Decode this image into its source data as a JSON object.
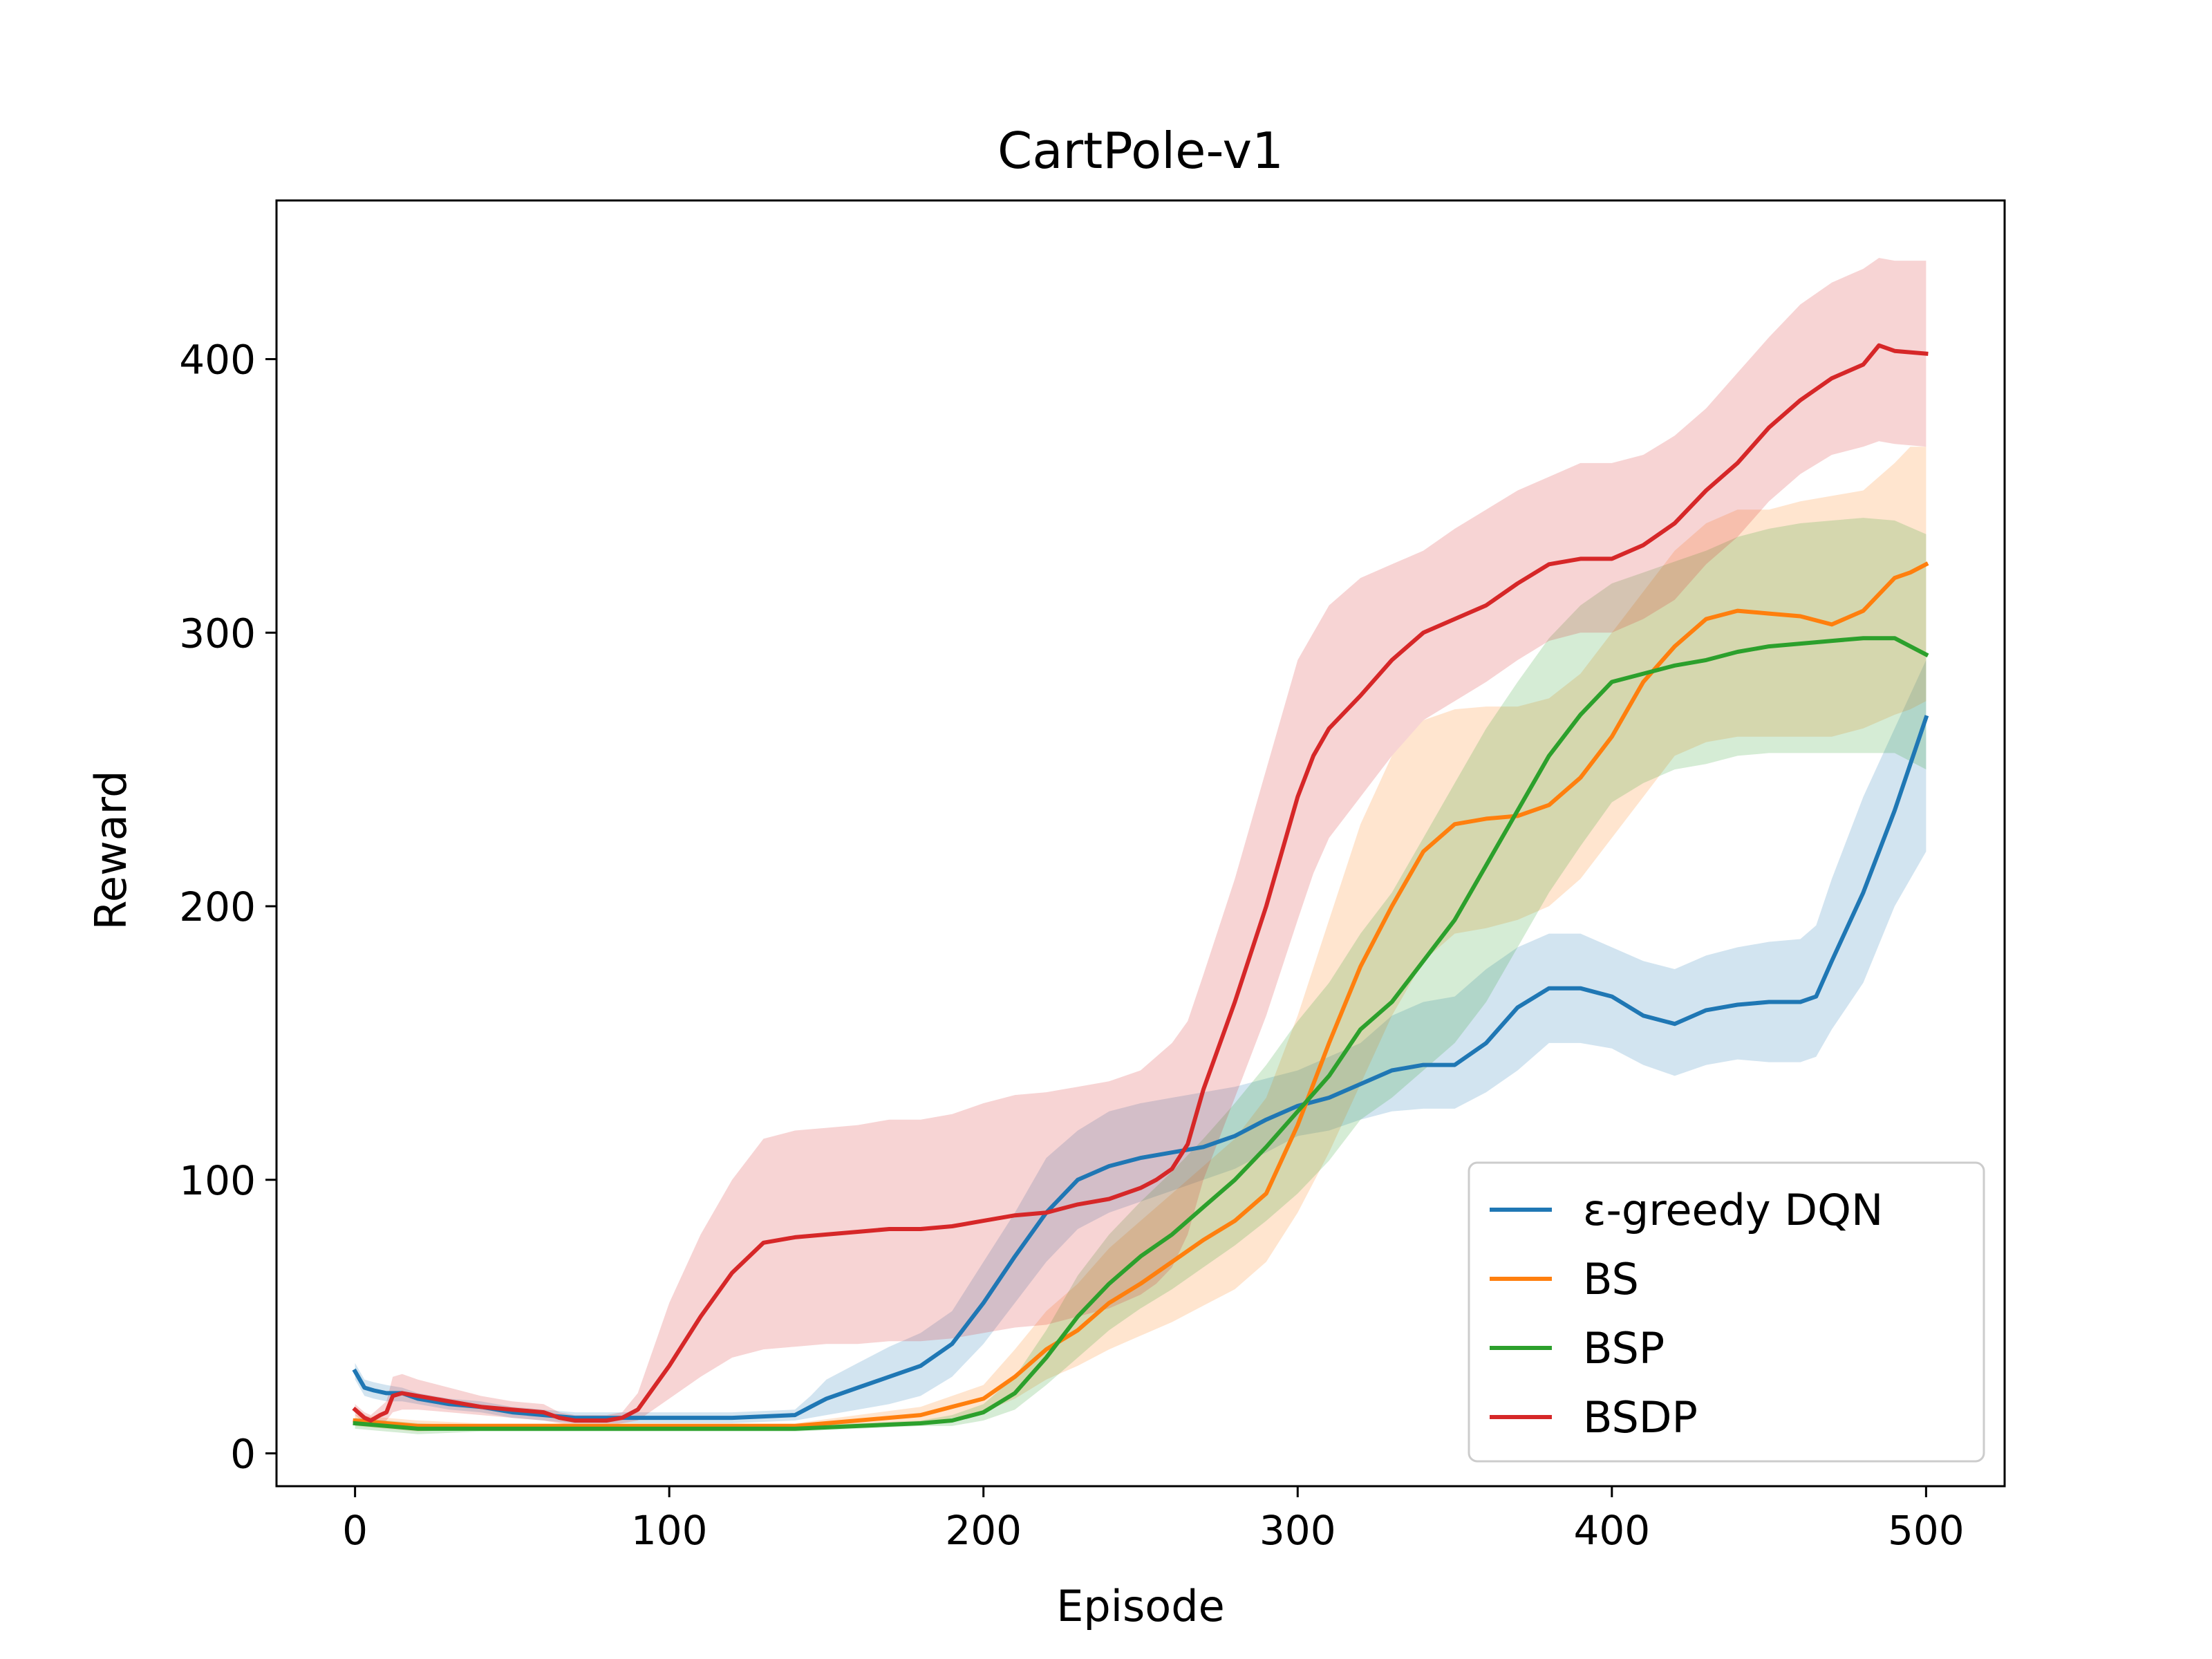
{
  "chart_data": {
    "type": "line",
    "title": "CartPole-v1",
    "xlabel": "Episode",
    "ylabel": "Reward",
    "xlim": [
      -25,
      525
    ],
    "ylim": [
      -12,
      458
    ],
    "xticks": [
      0,
      100,
      200,
      300,
      400,
      500
    ],
    "yticks": [
      0,
      100,
      200,
      300,
      400
    ],
    "grid": false,
    "legend_position": "lower-right",
    "series": [
      {
        "name": "ε-greedy DQN",
        "color": "#1f77b4",
        "x": [
          0,
          3,
          6,
          10,
          15,
          20,
          30,
          40,
          50,
          60,
          70,
          80,
          90,
          100,
          120,
          140,
          145,
          150,
          160,
          170,
          180,
          190,
          200,
          210,
          220,
          230,
          240,
          250,
          260,
          270,
          280,
          290,
          300,
          310,
          320,
          330,
          340,
          350,
          360,
          370,
          380,
          390,
          400,
          410,
          420,
          430,
          440,
          450,
          460,
          465,
          470,
          480,
          490,
          500
        ],
        "y": [
          30,
          24,
          23,
          22,
          22,
          20,
          18,
          17,
          15,
          14,
          13,
          13,
          13,
          13,
          13,
          14,
          17,
          20,
          24,
          28,
          32,
          40,
          55,
          72,
          88,
          100,
          105,
          108,
          110,
          112,
          116,
          122,
          127,
          130,
          135,
          140,
          142,
          142,
          150,
          163,
          170,
          170,
          167,
          160,
          157,
          162,
          164,
          165,
          165,
          167,
          180,
          205,
          235,
          269
        ],
        "upper": [
          33,
          27,
          26,
          25,
          24,
          22,
          20,
          19,
          17,
          16,
          15,
          15,
          15,
          15,
          15,
          16,
          21,
          27,
          33,
          39,
          44,
          52,
          70,
          88,
          108,
          118,
          125,
          128,
          130,
          132,
          134,
          137,
          140,
          145,
          150,
          160,
          165,
          167,
          177,
          185,
          190,
          190,
          185,
          180,
          177,
          182,
          185,
          187,
          188,
          193,
          210,
          240,
          265,
          290
        ],
        "lower": [
          27,
          21,
          20,
          19,
          19,
          18,
          16,
          15,
          13,
          12,
          11,
          11,
          11,
          11,
          11,
          12,
          13,
          14,
          16,
          18,
          21,
          28,
          40,
          55,
          70,
          82,
          88,
          92,
          96,
          100,
          104,
          110,
          116,
          118,
          122,
          125,
          126,
          126,
          132,
          140,
          150,
          150,
          148,
          142,
          138,
          142,
          144,
          143,
          143,
          145,
          155,
          172,
          200,
          220
        ]
      },
      {
        "name": "BS",
        "color": "#ff7f0e",
        "x": [
          0,
          10,
          20,
          40,
          60,
          80,
          100,
          140,
          160,
          180,
          190,
          200,
          210,
          220,
          230,
          240,
          250,
          260,
          270,
          280,
          290,
          300,
          310,
          320,
          330,
          340,
          350,
          360,
          370,
          380,
          390,
          400,
          410,
          420,
          430,
          440,
          450,
          460,
          470,
          480,
          490,
          495,
          500
        ],
        "y": [
          12,
          11,
          10,
          10,
          10,
          10,
          10,
          10,
          12,
          14,
          17,
          20,
          28,
          38,
          45,
          55,
          62,
          70,
          78,
          85,
          95,
          120,
          150,
          178,
          200,
          220,
          230,
          232,
          233,
          237,
          247,
          262,
          282,
          295,
          305,
          308,
          307,
          306,
          303,
          308,
          320,
          322,
          325
        ],
        "upper": [
          14,
          13,
          12,
          11,
          11,
          11,
          11,
          11,
          14,
          17,
          21,
          25,
          38,
          52,
          62,
          75,
          85,
          95,
          105,
          115,
          130,
          160,
          195,
          230,
          255,
          268,
          272,
          273,
          273,
          276,
          285,
          300,
          315,
          330,
          340,
          345,
          345,
          348,
          350,
          352,
          362,
          368,
          368
        ],
        "lower": [
          10,
          9,
          8,
          9,
          9,
          9,
          9,
          9,
          10,
          11,
          13,
          15,
          20,
          27,
          32,
          38,
          43,
          48,
          54,
          60,
          70,
          88,
          110,
          135,
          160,
          180,
          190,
          192,
          195,
          200,
          210,
          225,
          240,
          255,
          260,
          262,
          262,
          262,
          262,
          265,
          270,
          272,
          275
        ]
      },
      {
        "name": "BSP",
        "color": "#2ca02c",
        "x": [
          0,
          10,
          20,
          40,
          60,
          80,
          100,
          140,
          160,
          180,
          190,
          200,
          210,
          220,
          230,
          240,
          250,
          260,
          270,
          280,
          290,
          300,
          310,
          320,
          330,
          340,
          350,
          360,
          370,
          380,
          390,
          400,
          410,
          420,
          430,
          440,
          450,
          460,
          470,
          480,
          490,
          500
        ],
        "y": [
          11,
          10,
          9,
          9,
          9,
          9,
          9,
          9,
          10,
          11,
          12,
          15,
          22,
          35,
          50,
          62,
          72,
          80,
          90,
          100,
          112,
          125,
          138,
          155,
          165,
          180,
          195,
          215,
          235,
          255,
          270,
          282,
          285,
          288,
          290,
          293,
          295,
          296,
          297,
          298,
          298,
          292
        ],
        "upper": [
          13,
          12,
          11,
          10,
          10,
          10,
          10,
          10,
          11,
          12,
          14,
          18,
          28,
          45,
          65,
          80,
          92,
          103,
          115,
          128,
          142,
          158,
          172,
          190,
          205,
          225,
          245,
          265,
          282,
          298,
          310,
          318,
          322,
          326,
          330,
          335,
          338,
          340,
          341,
          342,
          341,
          336
        ],
        "lower": [
          9,
          8,
          7,
          8,
          8,
          8,
          8,
          8,
          9,
          10,
          10,
          12,
          16,
          25,
          35,
          45,
          53,
          60,
          68,
          76,
          85,
          95,
          107,
          122,
          130,
          140,
          150,
          165,
          185,
          205,
          222,
          238,
          245,
          250,
          252,
          255,
          256,
          256,
          256,
          256,
          256,
          250
        ]
      },
      {
        "name": "BSDP",
        "color": "#d62728",
        "x": [
          0,
          3,
          5,
          8,
          10,
          12,
          15,
          20,
          30,
          40,
          50,
          60,
          65,
          70,
          75,
          80,
          85,
          90,
          100,
          110,
          120,
          130,
          140,
          150,
          160,
          170,
          180,
          190,
          200,
          210,
          220,
          230,
          240,
          250,
          255,
          260,
          265,
          270,
          280,
          290,
          300,
          305,
          310,
          320,
          330,
          340,
          350,
          360,
          370,
          380,
          390,
          400,
          410,
          420,
          430,
          440,
          450,
          460,
          470,
          480,
          485,
          490,
          500
        ],
        "y": [
          16,
          13,
          12,
          14,
          15,
          21,
          22,
          21,
          19,
          17,
          16,
          15,
          13,
          12,
          12,
          12,
          13,
          16,
          32,
          50,
          66,
          77,
          79,
          80,
          81,
          82,
          82,
          83,
          85,
          87,
          88,
          91,
          93,
          97,
          100,
          104,
          113,
          133,
          165,
          200,
          240,
          255,
          265,
          277,
          290,
          300,
          305,
          310,
          318,
          325,
          327,
          327,
          332,
          340,
          352,
          362,
          375,
          385,
          393,
          398,
          405,
          403,
          402
        ],
        "upper": [
          18,
          15,
          14,
          17,
          19,
          28,
          29,
          27,
          24,
          21,
          19,
          18,
          15,
          14,
          14,
          14,
          15,
          22,
          55,
          80,
          100,
          115,
          118,
          119,
          120,
          122,
          122,
          124,
          128,
          131,
          132,
          134,
          136,
          140,
          145,
          150,
          158,
          175,
          210,
          250,
          290,
          300,
          310,
          320,
          325,
          330,
          338,
          345,
          352,
          357,
          362,
          362,
          365,
          372,
          382,
          395,
          408,
          420,
          428,
          433,
          437,
          436,
          436
        ],
        "lower": [
          14,
          11,
          10,
          11,
          12,
          15,
          16,
          16,
          15,
          14,
          13,
          12,
          11,
          10,
          10,
          10,
          11,
          12,
          20,
          28,
          35,
          38,
          39,
          40,
          40,
          41,
          41,
          42,
          44,
          46,
          47,
          50,
          53,
          58,
          62,
          68,
          80,
          100,
          130,
          160,
          195,
          212,
          225,
          240,
          255,
          268,
          275,
          282,
          290,
          297,
          300,
          300,
          305,
          312,
          325,
          335,
          348,
          358,
          365,
          368,
          370,
          369,
          368
        ]
      }
    ]
  }
}
